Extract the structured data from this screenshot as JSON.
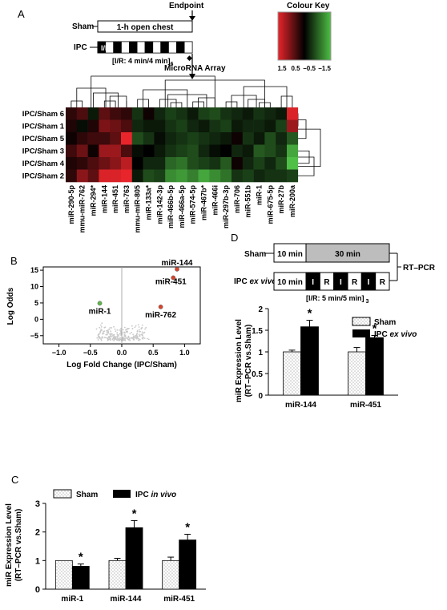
{
  "panels": {
    "A": {
      "letter": "A",
      "endpoint": "Endpoint",
      "colour_key_title": "Colour Key",
      "colour_key_ticks": [
        "1.5",
        "0.5",
        "−0.5",
        "−1.5"
      ],
      "sham_label": "Sham",
      "sham_box": "1-h open chest",
      "ipc_label": "IPC",
      "ipc_ir": "I/R",
      "protocol": "[I/R: 4 min/4 min]",
      "protocol_sub": "6",
      "array_label": "MicroRNA Array",
      "colors": {
        "high": "#e8252b",
        "mid": "#000000",
        "low": "#4fbf45"
      },
      "rows": [
        "IPC/Sham 6",
        "IPC/Sham 1",
        "IPC/Sham 5",
        "IPC/Sham 3",
        "IPC/Sham 4",
        "IPC/Sham 2"
      ],
      "cols": [
        "miR-290-5p",
        "mmu-miR-762",
        "miR-294*",
        "miR-144",
        "miR-451",
        "miR-763",
        "mmu-miR-805",
        "miR-133a*",
        "miR-142-3p",
        "miR-466b-5p",
        "miR-466a-5p",
        "miR-574-5p",
        "miR-467b*",
        "miR-466i",
        "miR-297b-3p",
        "miR-706",
        "miR-551b",
        "miR-1",
        "miR-675-5p",
        "miR-27b",
        "miR-200a"
      ],
      "values": [
        [
          0.3,
          0.5,
          -0.2,
          0.6,
          0.4,
          0.3,
          -0.4,
          0.1,
          -0.3,
          -0.5,
          -0.4,
          -0.2,
          -0.5,
          -0.6,
          -0.4,
          -0.3,
          -0.2,
          -0.4,
          -0.3,
          -0.2,
          1.4
        ],
        [
          0.2,
          -0.1,
          0.2,
          0.8,
          0.7,
          0.5,
          -0.3,
          -0.2,
          -0.2,
          -0.4,
          -0.5,
          -0.3,
          -0.2,
          -0.4,
          -0.5,
          -0.2,
          -0.3,
          -0.3,
          -0.2,
          -0.5,
          1.0
        ],
        [
          0.1,
          0.3,
          0.4,
          0.4,
          0.6,
          1.5,
          -0.6,
          -0.4,
          -0.1,
          -0.3,
          -0.4,
          -0.5,
          -0.4,
          -0.3,
          -0.2,
          0.1,
          -0.4,
          -0.2,
          -0.6,
          -0.3,
          -0.7
        ],
        [
          0.4,
          0.7,
          0.1,
          1.0,
          1.0,
          0.5,
          -0.1,
          0.0,
          -0.2,
          -0.4,
          -0.5,
          -0.6,
          -0.3,
          -0.1,
          0.0,
          -0.3,
          -0.2,
          -0.7,
          -0.6,
          -0.4,
          -1.3
        ],
        [
          0.2,
          0.3,
          0.5,
          0.7,
          0.9,
          1.2,
          0.0,
          -0.3,
          -0.3,
          -0.8,
          -0.9,
          -0.6,
          -0.5,
          -0.4,
          -0.7,
          0.1,
          -0.3,
          -0.5,
          -0.3,
          -0.6,
          -1.5
        ],
        [
          0.3,
          0.9,
          0.6,
          1.4,
          1.4,
          1.5,
          -0.2,
          -0.6,
          -0.5,
          -1.1,
          -1.2,
          -1.0,
          -1.3,
          -1.1,
          -0.9,
          -0.4,
          -0.5,
          -0.3,
          -0.4,
          -0.4,
          -0.5
        ]
      ]
    },
    "B": {
      "letter": "B",
      "xlabel": "Log Fold Change (IPC/Sham)",
      "ylabel": "Log Odds",
      "xticks": [
        "−1.0",
        "−0.5",
        "0.0",
        "0.5",
        "1.0"
      ],
      "yticks": [
        "−5",
        "0",
        "5",
        "10",
        "15"
      ],
      "labels": {
        "mir144": "miR-144",
        "mir451": "miR-451",
        "mir1": "miR-1",
        "mir762": "miR-762"
      }
    },
    "C": {
      "letter": "C",
      "ylabel1": "miR Expression Level",
      "ylabel2": "(RT–PCR vs.Sham)",
      "legend_sham": "Sham",
      "legend_ipc": "IPC",
      "legend_ipc_italic": "in vivo",
      "star": "*"
    },
    "D": {
      "letter": "D",
      "sham_label": "Sham",
      "sham_10": "10 min",
      "sham_30": "30 min",
      "rtpcr": "RT–PCR",
      "ipc_label": "IPC",
      "ipc_italic": "ex vivo",
      "ipc_10": "10 min",
      "blocks": [
        "I",
        "R",
        "I",
        "R",
        "I",
        "R"
      ],
      "protocol": "[I/R: 5 min/5 min]",
      "protocol_sub": "3",
      "ylabel1": "miR Expression Level",
      "ylabel2": "(RT–PCR vs.Sham)",
      "legend_sham": "Sham",
      "legend_ipc": "IPC",
      "legend_ipc_italic": "ex vivo",
      "star": "*"
    }
  },
  "chart_data": [
    {
      "type": "scatter",
      "panel": "B",
      "title": "",
      "xlabel": "Log Fold Change (IPC/Sham)",
      "ylabel": "Log Odds",
      "xlim": [
        -1.25,
        1.25
      ],
      "ylim": [
        -7.5,
        16
      ],
      "highlighted": [
        {
          "name": "miR-144",
          "x": 0.88,
          "y": 15.3,
          "color": "#d9442b"
        },
        {
          "name": "miR-451",
          "x": 0.82,
          "y": 12.7,
          "color": "#d9442b"
        },
        {
          "name": "miR-1",
          "x": -0.35,
          "y": 4.9,
          "color": "#5fb84a"
        },
        {
          "name": "miR-762",
          "x": 0.62,
          "y": 3.8,
          "color": "#d9442b"
        }
      ],
      "background_points": {
        "color": "#c8c8c8",
        "description": "volcano cloud"
      }
    },
    {
      "type": "bar",
      "panel": "C",
      "categories": [
        "miR-1",
        "miR-144",
        "miR-451"
      ],
      "series": [
        {
          "name": "Sham",
          "values": [
            1.0,
            1.0,
            1.0
          ],
          "errors": [
            0.0,
            0.08,
            0.12
          ]
        },
        {
          "name": "IPC in vivo",
          "values": [
            0.8,
            2.15,
            1.72
          ],
          "errors": [
            0.08,
            0.25,
            0.2
          ]
        }
      ],
      "significant": [
        true,
        true,
        true
      ],
      "xlabel": "",
      "ylabel": "miR Expression Level (RT–PCR vs.Sham)",
      "ylim": [
        0,
        3
      ],
      "yticks": [
        0,
        1,
        2,
        3
      ]
    },
    {
      "type": "bar",
      "panel": "D",
      "categories": [
        "miR-144",
        "miR-451"
      ],
      "series": [
        {
          "name": "Sham",
          "values": [
            1.0,
            1.0
          ],
          "errors": [
            0.04,
            0.1
          ]
        },
        {
          "name": "IPC ex vivo",
          "values": [
            1.58,
            1.33
          ],
          "errors": [
            0.15,
            0.05
          ]
        }
      ],
      "significant": [
        true,
        true
      ],
      "xlabel": "",
      "ylabel": "miR Expression Level (RT–PCR vs.Sham)",
      "ylim": [
        0,
        2
      ],
      "yticks": [
        0,
        0.5,
        1,
        1.5,
        2
      ]
    }
  ]
}
